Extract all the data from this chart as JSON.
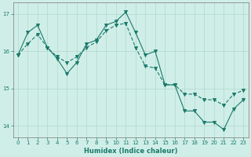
{
  "title": "",
  "xlabel": "Humidex (Indice chaleur)",
  "bg_color": "#d0eee8",
  "plot_bg_color": "#d0eee8",
  "grid_color": "#b0d8cc",
  "line_color": "#1a7a6a",
  "xlim": [
    -0.5,
    23.5
  ],
  "ylim": [
    13.7,
    17.3
  ],
  "yticks": [
    14,
    15,
    16,
    17
  ],
  "xticks": [
    0,
    1,
    2,
    3,
    4,
    5,
    6,
    7,
    8,
    9,
    10,
    11,
    12,
    13,
    14,
    15,
    16,
    17,
    18,
    19,
    20,
    21,
    22,
    23
  ],
  "series1": [
    15.9,
    16.5,
    16.7,
    16.1,
    15.8,
    15.4,
    15.7,
    16.2,
    16.3,
    16.7,
    16.8,
    17.05,
    16.5,
    15.9,
    16.0,
    15.1,
    15.1,
    14.4,
    14.4,
    14.1,
    14.1,
    13.9,
    14.45,
    14.7
  ],
  "trend": [
    15.9,
    16.2,
    16.45,
    16.1,
    15.85,
    15.7,
    15.85,
    16.1,
    16.25,
    16.55,
    16.7,
    16.75,
    16.1,
    15.6,
    15.55,
    15.1,
    15.1,
    14.85,
    14.85,
    14.7,
    14.7,
    14.55,
    14.85,
    14.95
  ]
}
